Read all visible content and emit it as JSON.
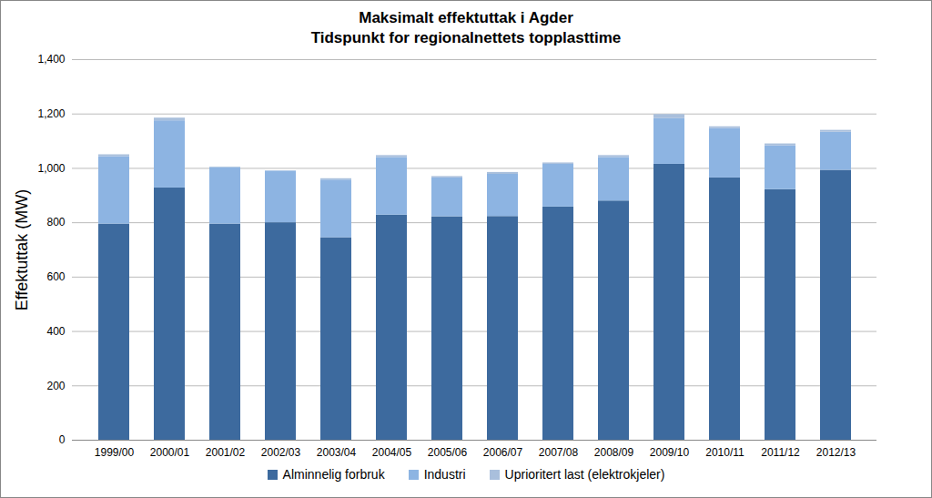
{
  "chart_data": {
    "type": "bar",
    "stacked": true,
    "title": "Maksimalt effektuttak i Agder",
    "subtitle": "Tidspunkt for regionalnettets topplasttime",
    "y_label": "Effektuttak (MW)",
    "categories": [
      "1999/00",
      "2000/01",
      "2001/02",
      "2002/03",
      "2003/04",
      "2004/05",
      "2005/06",
      "2006/07",
      "2007/08",
      "2008/09",
      "2009/10",
      "2010/11",
      "2011/12",
      "2012/13"
    ],
    "series": [
      {
        "name": "Alminnelig forbruk",
        "color": "#3d6a9e",
        "values": [
          795,
          928,
          795,
          800,
          745,
          828,
          822,
          823,
          858,
          880,
          1015,
          965,
          922,
          993
        ]
      },
      {
        "name": "Industri",
        "color": "#8db4e2",
        "values": [
          248,
          247,
          208,
          190,
          212,
          212,
          143,
          155,
          157,
          160,
          168,
          182,
          161,
          140
        ]
      },
      {
        "name": "Uprioritert last (elektrokjeler)",
        "color": "#a9bfdc",
        "values": [
          7,
          10,
          2,
          1,
          5,
          7,
          5,
          7,
          5,
          7,
          15,
          6,
          7,
          7
        ]
      }
    ],
    "ylim": [
      0,
      1400
    ],
    "yticks": [
      0,
      200,
      400,
      600,
      800,
      1000,
      1200,
      1400
    ],
    "grid": true,
    "legend": "bottom"
  }
}
